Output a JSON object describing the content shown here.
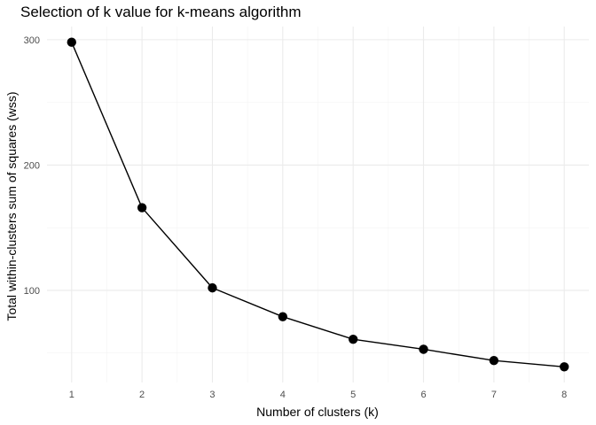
{
  "chart_data": {
    "type": "line",
    "title": "Selection of k value for k-means algorithm",
    "xlabel": "Number of clusters (k)",
    "ylabel": "Total within-clusters sum of squares (wss)",
    "x": [
      1,
      2,
      3,
      4,
      5,
      6,
      7,
      8
    ],
    "series": [
      {
        "values": [
          298,
          166,
          102,
          79,
          61,
          53,
          44,
          39
        ]
      }
    ],
    "xticks": [
      1,
      2,
      3,
      4,
      5,
      6,
      7,
      8
    ],
    "yticks": [
      100,
      200,
      300
    ],
    "xlim": [
      0.65,
      8.35
    ],
    "ylim": [
      26.5,
      310.5
    ],
    "grid": true,
    "markers": true,
    "colors": {
      "line": "#000000",
      "point": "#000000",
      "grid": "#ebebeb"
    }
  }
}
